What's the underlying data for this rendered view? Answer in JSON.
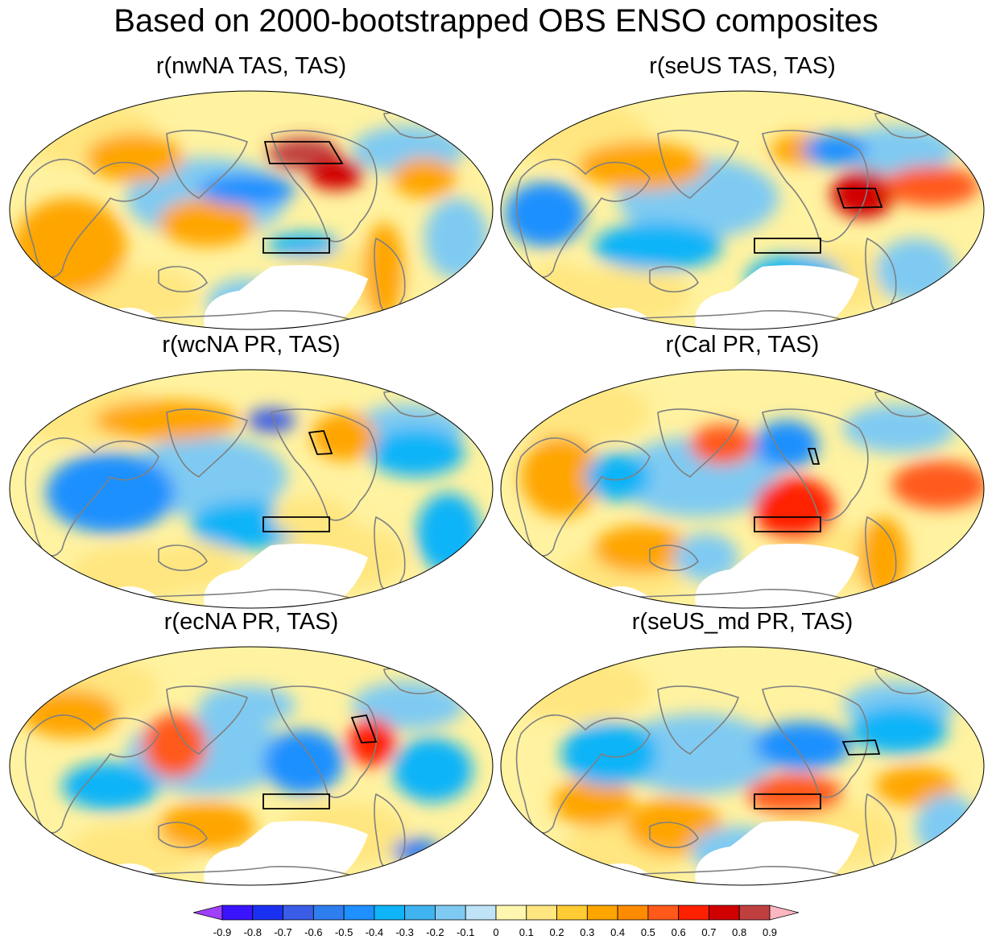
{
  "title": "Based on 2000-bootstrapped OBS ENSO composites",
  "panels": [
    {
      "title": "r(nwNA TAS, TAS)",
      "box": "nwNA",
      "blobs": [
        {
          "c": 0.9,
          "x": 370,
          "y": 145,
          "rx": 45,
          "ry": 20
        },
        {
          "c": 0.7,
          "x": 410,
          "y": 170,
          "rx": 35,
          "ry": 20
        },
        {
          "c": 0.4,
          "x": 250,
          "y": 230,
          "rx": 60,
          "ry": 30
        },
        {
          "c": 0.3,
          "x": 80,
          "y": 260,
          "rx": 70,
          "ry": 60
        },
        {
          "c": 0.3,
          "x": 520,
          "y": 175,
          "rx": 40,
          "ry": 25
        },
        {
          "c": 0.3,
          "x": 160,
          "y": 150,
          "rx": 60,
          "ry": 30
        },
        {
          "c": 0.3,
          "x": 470,
          "y": 290,
          "rx": 25,
          "ry": 60
        },
        {
          "c": -0.4,
          "x": 300,
          "y": 190,
          "rx": 60,
          "ry": 20
        },
        {
          "c": -0.3,
          "x": 370,
          "y": 258,
          "rx": 45,
          "ry": 15
        },
        {
          "c": -0.2,
          "x": 300,
          "y": 330,
          "rx": 50,
          "ry": 30
        },
        {
          "c": -0.2,
          "x": 560,
          "y": 250,
          "rx": 40,
          "ry": 50
        }
      ]
    },
    {
      "title": "r(seUS TAS, TAS)",
      "box": "seUS",
      "blobs": [
        {
          "c": 0.7,
          "x": 455,
          "y": 195,
          "rx": 40,
          "ry": 30
        },
        {
          "c": 0.5,
          "x": 540,
          "y": 185,
          "rx": 60,
          "ry": 25
        },
        {
          "c": 0.4,
          "x": 180,
          "y": 160,
          "rx": 80,
          "ry": 30
        },
        {
          "c": 0.3,
          "x": 380,
          "y": 140,
          "rx": 40,
          "ry": 20
        },
        {
          "c": 0.2,
          "x": 80,
          "y": 320,
          "rx": 40,
          "ry": 40
        },
        {
          "c": -0.5,
          "x": 420,
          "y": 140,
          "rx": 40,
          "ry": 20
        },
        {
          "c": -0.4,
          "x": 60,
          "y": 220,
          "rx": 50,
          "ry": 40
        },
        {
          "c": -0.3,
          "x": 200,
          "y": 260,
          "rx": 80,
          "ry": 30
        },
        {
          "c": -0.3,
          "x": 370,
          "y": 300,
          "rx": 60,
          "ry": 30
        },
        {
          "c": -0.2,
          "x": 520,
          "y": 290,
          "rx": 50,
          "ry": 40
        }
      ]
    },
    {
      "title": "r(wcNA PR, TAS)",
      "box": "wcNA",
      "blobs": [
        {
          "c": -0.7,
          "x": 330,
          "y": 130,
          "rx": 30,
          "ry": 15
        },
        {
          "c": -0.4,
          "x": 130,
          "y": 220,
          "rx": 80,
          "ry": 50
        },
        {
          "c": -0.3,
          "x": 300,
          "y": 260,
          "rx": 70,
          "ry": 30
        },
        {
          "c": -0.3,
          "x": 510,
          "y": 170,
          "rx": 60,
          "ry": 30
        },
        {
          "c": -0.3,
          "x": 550,
          "y": 270,
          "rx": 40,
          "ry": 50
        },
        {
          "c": 0.3,
          "x": 200,
          "y": 130,
          "rx": 90,
          "ry": 25
        },
        {
          "c": 0.3,
          "x": 420,
          "y": 150,
          "rx": 40,
          "ry": 30
        },
        {
          "c": 0.2,
          "x": 380,
          "y": 250,
          "rx": 50,
          "ry": 25
        },
        {
          "c": 0.2,
          "x": 240,
          "y": 310,
          "rx": 50,
          "ry": 30
        }
      ]
    },
    {
      "title": "r(Cal PR, TAS)",
      "box": "Cal",
      "blobs": [
        {
          "c": 0.6,
          "x": 370,
          "y": 240,
          "rx": 50,
          "ry": 40
        },
        {
          "c": 0.5,
          "x": 280,
          "y": 160,
          "rx": 40,
          "ry": 25
        },
        {
          "c": 0.5,
          "x": 550,
          "y": 210,
          "rx": 60,
          "ry": 30
        },
        {
          "c": 0.4,
          "x": 180,
          "y": 290,
          "rx": 60,
          "ry": 30
        },
        {
          "c": 0.3,
          "x": 80,
          "y": 200,
          "rx": 50,
          "ry": 50
        },
        {
          "c": 0.3,
          "x": 480,
          "y": 300,
          "rx": 30,
          "ry": 50
        },
        {
          "c": -0.4,
          "x": 360,
          "y": 160,
          "rx": 40,
          "ry": 30
        },
        {
          "c": -0.3,
          "x": 150,
          "y": 200,
          "rx": 40,
          "ry": 30
        },
        {
          "c": -0.2,
          "x": 260,
          "y": 300,
          "rx": 40,
          "ry": 30
        },
        {
          "c": -0.2,
          "x": 480,
          "y": 140,
          "rx": 40,
          "ry": 20
        }
      ]
    },
    {
      "title": "r(ecNA PR, TAS)",
      "box": "ecNA",
      "blobs": [
        {
          "c": 0.6,
          "x": 455,
          "y": 185,
          "rx": 30,
          "ry": 30
        },
        {
          "c": 0.5,
          "x": 210,
          "y": 190,
          "rx": 40,
          "ry": 40
        },
        {
          "c": 0.4,
          "x": 250,
          "y": 290,
          "rx": 60,
          "ry": 30
        },
        {
          "c": 0.3,
          "x": 80,
          "y": 150,
          "rx": 60,
          "ry": 30
        },
        {
          "c": -0.6,
          "x": 510,
          "y": 320,
          "rx": 30,
          "ry": 15
        },
        {
          "c": -0.4,
          "x": 370,
          "y": 210,
          "rx": 50,
          "ry": 40
        },
        {
          "c": -0.3,
          "x": 130,
          "y": 240,
          "rx": 60,
          "ry": 30
        },
        {
          "c": -0.3,
          "x": 530,
          "y": 220,
          "rx": 50,
          "ry": 40
        },
        {
          "c": -0.2,
          "x": 300,
          "y": 140,
          "rx": 60,
          "ry": 25
        }
      ]
    },
    {
      "title": "r(seUS_md PR, TAS)",
      "box": "seUS_md",
      "blobs": [
        {
          "c": 0.5,
          "x": 370,
          "y": 250,
          "rx": 60,
          "ry": 25
        },
        {
          "c": 0.4,
          "x": 220,
          "y": 290,
          "rx": 60,
          "ry": 35
        },
        {
          "c": 0.3,
          "x": 520,
          "y": 240,
          "rx": 50,
          "ry": 25
        },
        {
          "c": 0.3,
          "x": 120,
          "y": 260,
          "rx": 50,
          "ry": 30
        },
        {
          "c": -0.4,
          "x": 380,
          "y": 190,
          "rx": 60,
          "ry": 30
        },
        {
          "c": -0.3,
          "x": 140,
          "y": 200,
          "rx": 60,
          "ry": 40
        },
        {
          "c": -0.3,
          "x": 500,
          "y": 170,
          "rx": 60,
          "ry": 30
        },
        {
          "c": -0.2,
          "x": 300,
          "y": 320,
          "rx": 60,
          "ry": 30
        },
        {
          "c": -0.2,
          "x": 560,
          "y": 290,
          "rx": 40,
          "ry": 40
        }
      ]
    }
  ],
  "colorbar": {
    "labels": [
      "-0.9",
      "-0.8",
      "-0.7",
      "-0.6",
      "-0.5",
      "-0.4",
      "-0.3",
      "-0.2",
      "-0.1",
      "0",
      "0.1",
      "0.2",
      "0.3",
      "0.4",
      "0.5",
      "0.6",
      "0.7",
      "0.8",
      "0.9"
    ],
    "colors": [
      "#a040ff",
      "#3a14ff",
      "#1a30f0",
      "#3a5ce6",
      "#2f7ef0",
      "#1e90ff",
      "#10b4f8",
      "#40b4f0",
      "#7fcaf2",
      "#bfe3f7",
      "#fff7b0",
      "#ffe680",
      "#ffcc33",
      "#ffa500",
      "#ff8c00",
      "#ff5a1a",
      "#ff2000",
      "#d00000",
      "#c04040",
      "#ffb6c1"
    ]
  }
}
